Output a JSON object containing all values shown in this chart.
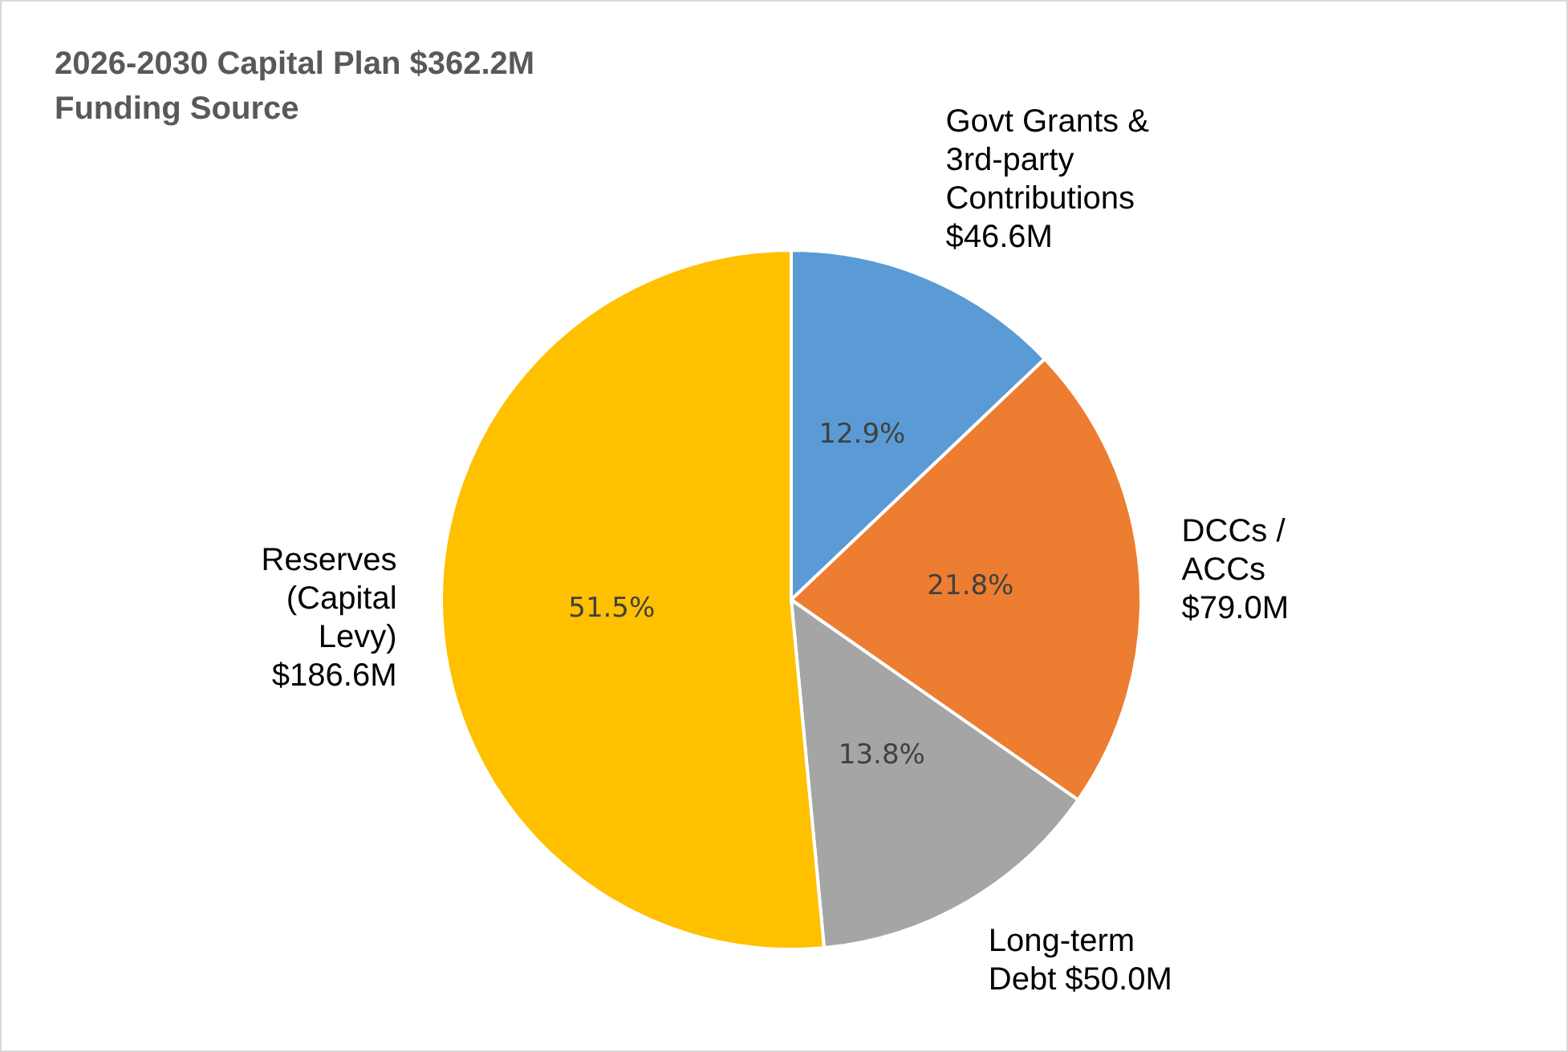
{
  "chart_data": {
    "type": "pie",
    "title": "2026-2030 Capital Plan $362.2M\nFunding Source",
    "categories": [
      "Govt Grants &\n3rd-party\nContributions\n$46.6M",
      "DCCs /\nACCs\n$79.0M",
      "Long-term\nDebt $50.0M",
      "Reserves\n(Capital\nLevy)\n$186.6M"
    ],
    "values": [
      12.9,
      21.8,
      13.8,
      51.5
    ],
    "value_labels": [
      "12.9%",
      "21.8%",
      "13.8%",
      "51.5%"
    ],
    "colors": [
      "#5b9bd5",
      "#ed7d31",
      "#a5a5a5",
      "#ffc000"
    ],
    "legend": false
  }
}
